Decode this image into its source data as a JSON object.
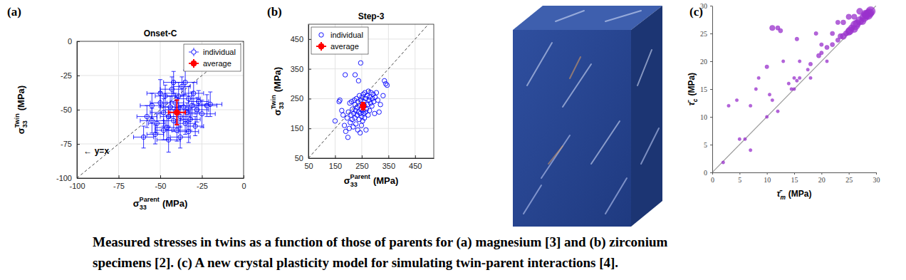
{
  "chart_data": [
    {
      "type": "scatter",
      "panel_label": "(a)",
      "title": "Onset-C",
      "x_label": {
        "text": "σ",
        "subscript": "33",
        "superscript": "Parent",
        "suffix": "(MPa)"
      },
      "y_label": {
        "text": "σ",
        "subscript": "33",
        "superscript": "Twin",
        "suffix": "(MPa)"
      },
      "xlim": [
        -100,
        0
      ],
      "ylim": [
        -100,
        0
      ],
      "xticks": [
        -100,
        -75,
        -50,
        -25,
        0
      ],
      "yticks": [
        -100,
        -75,
        -50,
        -25,
        0
      ],
      "grid": true,
      "legend": "upper right",
      "line_style": "dashed",
      "annotations": [
        {
          "text": "← y=x",
          "x": -96,
          "y": -80
        }
      ],
      "series": [
        {
          "name": "individual",
          "color": "#0000ff",
          "marker": "circle",
          "x": [
            -58,
            -55,
            -52,
            -50,
            -48,
            -47,
            -46,
            -45,
            -44,
            -43,
            -42,
            -41,
            -40,
            -40,
            -39,
            -38,
            -37,
            -36,
            -35,
            -34,
            -33,
            -32,
            -31,
            -30,
            -29,
            -28,
            -27,
            -25,
            -22,
            -20,
            -60,
            -53,
            -45,
            -38,
            -50,
            -42,
            -35,
            -48,
            -33,
            -55
          ],
          "values": [
            -55,
            -47,
            -60,
            -45,
            -52,
            -40,
            -63,
            -55,
            -48,
            -35,
            -58,
            -45,
            -50,
            -65,
            -40,
            -55,
            -33,
            -48,
            -60,
            -52,
            -42,
            -57,
            -47,
            -38,
            -62,
            -50,
            -44,
            -53,
            -47,
            -46,
            -70,
            -68,
            -72,
            -70,
            -38,
            -30,
            -30,
            -65,
            -66,
            -58
          ],
          "x_err": [
            6,
            7,
            5,
            6,
            8,
            6,
            7,
            5,
            6,
            7,
            6,
            5,
            7,
            6,
            8,
            6,
            5,
            7,
            6,
            5,
            7,
            6,
            8,
            6,
            5,
            7,
            6,
            8,
            6,
            7,
            6,
            5,
            7,
            6,
            8,
            6,
            7,
            5,
            6,
            7
          ],
          "y_err": [
            8,
            9,
            7,
            8,
            10,
            8,
            9,
            7,
            8,
            9,
            8,
            7,
            9,
            8,
            10,
            8,
            7,
            9,
            8,
            7,
            9,
            8,
            10,
            8,
            7,
            9,
            8,
            10,
            8,
            9,
            8,
            7,
            9,
            8,
            10,
            8,
            9,
            7,
            8,
            9
          ]
        },
        {
          "name": "average",
          "color": "#ff0000",
          "marker": "dot",
          "x": [
            -40
          ],
          "values": [
            -52
          ],
          "x_err": [
            5
          ],
          "y_err": [
            9
          ]
        }
      ]
    },
    {
      "type": "scatter",
      "panel_label": "(b)",
      "title": "Step-3",
      "x_label": {
        "text": "σ",
        "subscript": "33",
        "superscript": "Parent",
        "suffix": "(MPa)"
      },
      "y_label": {
        "text": "σ",
        "subscript": "33",
        "superscript": "Twin",
        "suffix": "(MPa)"
      },
      "xlim": [
        50,
        520
      ],
      "ylim": [
        50,
        500
      ],
      "xticks": [
        50,
        150,
        250,
        350,
        450
      ],
      "yticks": [
        50,
        150,
        250,
        350,
        450
      ],
      "grid": true,
      "legend": "upper left",
      "line_style": "dashed",
      "series": [
        {
          "name": "individual",
          "color": "#0000ff",
          "marker": "circle",
          "x": [
            150,
            165,
            168,
            175,
            180,
            185,
            188,
            190,
            195,
            198,
            200,
            203,
            205,
            207,
            210,
            212,
            214,
            215,
            218,
            220,
            222,
            224,
            225,
            227,
            228,
            230,
            232,
            233,
            235,
            236,
            238,
            240,
            241,
            242,
            244,
            245,
            246,
            247,
            248,
            249,
            250,
            251,
            252,
            253,
            255,
            256,
            257,
            258,
            260,
            261,
            262,
            264,
            265,
            266,
            268,
            270,
            272,
            274,
            275,
            277,
            279,
            280,
            283,
            285,
            288,
            290,
            293,
            295,
            298,
            300,
            305,
            310,
            315,
            320,
            330,
            335,
            340,
            345,
            225,
            238
          ],
          "values": [
            175,
            240,
            245,
            210,
            195,
            160,
            330,
            140,
            185,
            120,
            205,
            150,
            235,
            170,
            195,
            240,
            180,
            215,
            155,
            200,
            245,
            185,
            230,
            210,
            165,
            250,
            195,
            220,
            145,
            240,
            205,
            180,
            260,
            225,
            135,
            200,
            370,
            245,
            215,
            160,
            190,
            255,
            230,
            175,
            210,
            265,
            200,
            240,
            185,
            225,
            270,
            205,
            250,
            145,
            215,
            260,
            230,
            195,
            275,
            245,
            210,
            255,
            235,
            270,
            225,
            250,
            265,
            240,
            200,
            255,
            270,
            245,
            205,
            230,
            260,
            310,
            300,
            295,
            330,
            310
          ]
        },
        {
          "name": "average",
          "color": "#ff0000",
          "marker": "dot",
          "x": [
            255
          ],
          "values": [
            225
          ],
          "x_err": [
            8
          ],
          "y_err": [
            12
          ]
        }
      ]
    },
    {
      "type": "scatter",
      "panel_label": "(c)",
      "x_label": {
        "text": "τ̄",
        "subscript": "m",
        "suffix": "(MPa)"
      },
      "y_label": {
        "text": "τ̄",
        "subscript": "c",
        "suffix": "(MPa)"
      },
      "xlim": [
        0,
        30
      ],
      "ylim": [
        0,
        30
      ],
      "xticks": [
        0,
        5,
        10,
        15,
        20,
        25,
        30
      ],
      "yticks": [
        0,
        5,
        10,
        15,
        20,
        25,
        30
      ],
      "grid": false,
      "line_style": "solid",
      "series": [
        {
          "color": "#9932cc",
          "marker": "dot",
          "x": [
            29,
            28.8,
            28.5,
            28.2,
            28,
            27.8,
            27.5,
            27,
            26.5,
            26.2,
            26,
            25.5,
            25.2,
            25,
            24.5,
            24,
            23.5,
            23,
            22,
            21,
            20,
            19.5,
            18,
            17.5,
            16,
            15.5,
            15,
            14.5,
            11,
            12,
            12.5,
            15.5,
            13,
            10,
            8.5,
            8,
            7,
            4.5,
            3,
            6,
            5,
            10.5,
            10,
            11,
            12,
            14,
            16,
            20,
            19,
            22,
            23,
            24,
            25,
            26,
            27,
            21,
            15,
            2,
            7,
            18
          ],
          "values": [
            29,
            28.7,
            28.4,
            28.3,
            28.5,
            27.9,
            27.2,
            27.3,
            26.8,
            26.5,
            25.8,
            26,
            25.5,
            25.3,
            25,
            24.5,
            24.5,
            23.8,
            23,
            22.5,
            21.5,
            21,
            19.5,
            18.5,
            17,
            16.5,
            17,
            15,
            26,
            26,
            25.5,
            24,
            20,
            19,
            17,
            15,
            12,
            13,
            12,
            6,
            6,
            14,
            10,
            13,
            11,
            16,
            20,
            23,
            25,
            25,
            27,
            27,
            28,
            28,
            29,
            20,
            15,
            1.8,
            4,
            17
          ],
          "sizes": [
            9,
            8,
            10,
            7,
            6,
            8,
            5,
            7,
            6,
            9,
            5,
            4,
            6,
            5,
            3,
            4,
            3,
            2,
            2,
            2,
            1.5,
            2,
            1.5,
            1,
            1,
            1,
            1,
            1,
            3,
            2,
            2,
            1.5,
            1,
            1.5,
            1,
            1,
            1,
            1,
            1,
            1,
            1,
            1,
            1,
            1,
            1,
            1,
            1,
            1.5,
            1.5,
            2,
            2,
            2.5,
            3,
            3,
            4,
            1,
            1,
            1,
            1,
            1
          ]
        }
      ]
    }
  ],
  "caption": [
    "Measured stresses in twins as a function of those of parents for (a) magnesium [3] and (b) zirconium",
    "specimens [2]. (c) A new crystal plasticity model for simulating twin-parent interactions [4]."
  ]
}
